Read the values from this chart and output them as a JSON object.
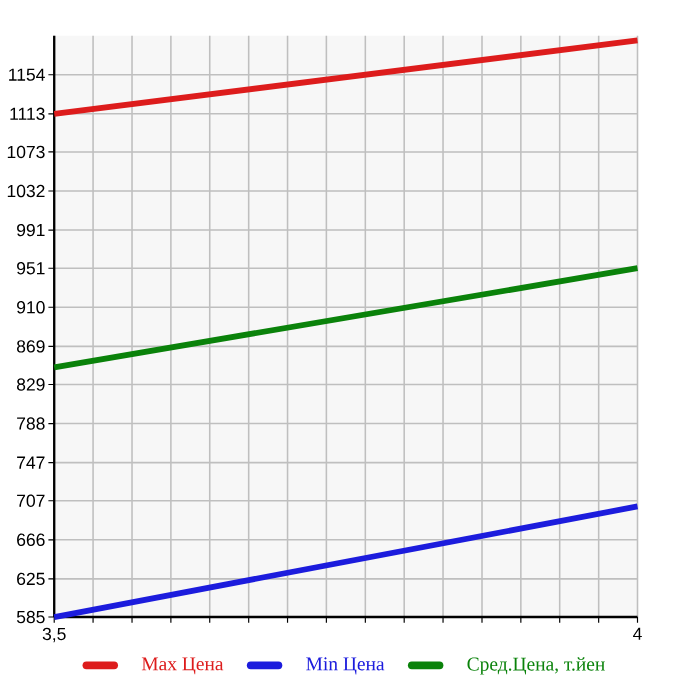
{
  "chart_data": {
    "type": "line",
    "x": [
      3.5,
      4
    ],
    "series": [
      {
        "name": "Max Цена",
        "color": "#dd1c1c",
        "values": [
          1113,
          1190
        ]
      },
      {
        "name": "Min Цена",
        "color": "#1c1cdd",
        "values": [
          585,
          701
        ]
      },
      {
        "name": "Сред.Цена, т.йен",
        "color": "#0a820a",
        "values": [
          847,
          951
        ]
      }
    ],
    "xlim": [
      3.5,
      4
    ],
    "xticks": [
      {
        "value": 3.5,
        "label": "3,5"
      },
      {
        "value": 3.5333,
        "label": null
      },
      {
        "value": 3.5667,
        "label": null
      },
      {
        "value": 3.6,
        "label": null
      },
      {
        "value": 3.6333,
        "label": null
      },
      {
        "value": 3.6667,
        "label": null
      },
      {
        "value": 3.7,
        "label": null
      },
      {
        "value": 3.7333,
        "label": null
      },
      {
        "value": 3.7667,
        "label": null
      },
      {
        "value": 3.8,
        "label": null
      },
      {
        "value": 3.8333,
        "label": null
      },
      {
        "value": 3.8667,
        "label": null
      },
      {
        "value": 3.9,
        "label": null
      },
      {
        "value": 3.9333,
        "label": null
      },
      {
        "value": 3.9667,
        "label": null
      },
      4
    ],
    "ylim": [
      585,
      1195
    ],
    "yticks": [
      585,
      625,
      666,
      707,
      747,
      788,
      829,
      869,
      910,
      951,
      991,
      1032,
      1073,
      1113,
      1154
    ],
    "grid": true,
    "legend": "bottom",
    "marker": "none",
    "line_style": "solid"
  }
}
